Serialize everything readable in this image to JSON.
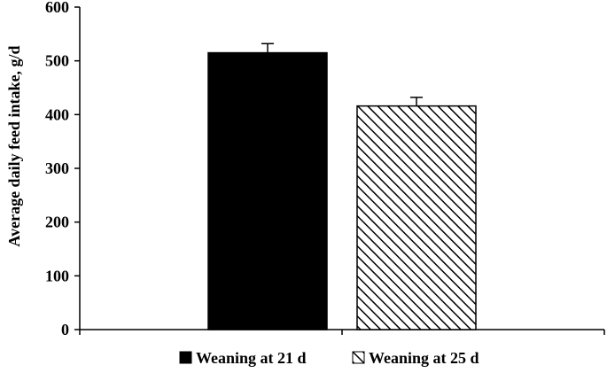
{
  "chart_data": {
    "type": "bar",
    "title": "",
    "xlabel": "",
    "ylabel": "Average daily feed intake, g/d",
    "ylim": [
      0,
      600
    ],
    "yticks": [
      0,
      100,
      200,
      300,
      400,
      500,
      600
    ],
    "grid": false,
    "legend_position": "bottom",
    "series": [
      {
        "name": "Weaning at 21 d",
        "value": 515,
        "error": 17,
        "fill": "#000000",
        "pattern": "solid"
      },
      {
        "name": "Weaning at 25 d",
        "value": 416,
        "error": 16,
        "fill": "#ffffff",
        "pattern": "diagonal-hatch"
      }
    ]
  }
}
